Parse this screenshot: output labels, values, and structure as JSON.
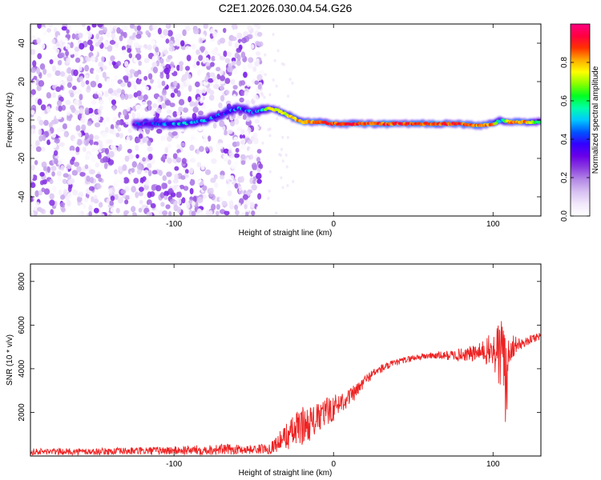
{
  "title": "C2E1.2026.030.04.54.G26",
  "chart_data": [
    {
      "type": "heatmap",
      "xlabel": "Height of straight line (km)",
      "ylabel": "Frequency (Hz)",
      "xlim": [
        -190,
        130
      ],
      "ylim": [
        -50,
        50
      ],
      "xticks": [
        -100,
        0,
        100
      ],
      "yticks": [
        -40,
        -20,
        0,
        20,
        40
      ],
      "noise_region": {
        "x": [
          -190,
          -45
        ],
        "y": [
          -50,
          50
        ]
      },
      "ridge": {
        "x": [
          -125,
          -110,
          -95,
          -80,
          -70,
          -60,
          -50,
          -45,
          -40,
          -35,
          -30,
          -25,
          -20,
          -10,
          0,
          10,
          20,
          40,
          60,
          80,
          90,
          100,
          105,
          110,
          120,
          130
        ],
        "y": [
          -2,
          -2,
          -2,
          0,
          3,
          6,
          4,
          5,
          6,
          5,
          3,
          1,
          -1,
          -1,
          -2,
          -2,
          -2,
          -2,
          -2,
          -2,
          -3,
          -2,
          0,
          -1,
          -1,
          -1
        ],
        "amplitude": [
          0.45,
          0.5,
          0.6,
          0.55,
          0.5,
          0.55,
          0.5,
          0.6,
          0.85,
          0.75,
          0.8,
          0.85,
          0.9,
          0.9,
          0.95,
          0.95,
          0.95,
          0.95,
          0.95,
          0.95,
          0.9,
          0.9,
          0.5,
          0.9,
          0.9,
          0.6
        ]
      },
      "colorbar": {
        "label": "Normalized spectral amplitude",
        "range": [
          0,
          1
        ],
        "ticks": [
          "0.0",
          "0.2",
          "0.4",
          "0.6",
          "0.8"
        ],
        "colors": [
          "#ffffff",
          "#f2e8fb",
          "#d8c2f2",
          "#b58ae6",
          "#8c3fe0",
          "#6a00e8",
          "#3300ff",
          "#0055ff",
          "#00c8ff",
          "#00ffaa",
          "#00ff22",
          "#88ff00",
          "#ffff00",
          "#ffaa00",
          "#ff3300",
          "#ff0040",
          "#ff0080"
        ]
      }
    },
    {
      "type": "line",
      "xlabel": "Height of straight line (km)",
      "ylabel": "SNR (10 * v/v)",
      "xlim": [
        -190,
        130
      ],
      "ylim": [
        0,
        8800
      ],
      "xticks": [
        -100,
        0,
        100
      ],
      "yticks": [
        2000,
        4000,
        6000,
        8000
      ],
      "color": "#ee2222",
      "series": [
        {
          "x": [
            -190,
            -150,
            -100,
            -70,
            -50,
            -40,
            -35,
            -30,
            -25,
            -20,
            -15,
            -10,
            -5,
            0,
            5,
            10,
            15,
            20,
            25,
            30,
            40,
            50,
            60,
            70,
            80,
            90,
            95,
            100,
            103,
            106,
            107,
            108,
            110,
            115,
            120,
            125,
            130
          ],
          "y": [
            200,
            200,
            250,
            300,
            300,
            350,
            600,
            900,
            1100,
            1400,
            1500,
            1700,
            2000,
            2200,
            2500,
            2700,
            3000,
            3500,
            3800,
            4000,
            4300,
            4500,
            4600,
            4600,
            4650,
            4700,
            4800,
            4800,
            4700,
            4400,
            6000,
            2500,
            5000,
            5100,
            5200,
            5400,
            5500
          ],
          "noise": [
            150,
            150,
            200,
            250,
            200,
            250,
            400,
            600,
            800,
            900,
            800,
            700,
            700,
            600,
            500,
            400,
            350,
            250,
            200,
            200,
            150,
            150,
            150,
            200,
            300,
            400,
            600,
            900,
            1500,
            2500,
            2800,
            2500,
            900,
            300,
            200,
            200,
            200
          ]
        }
      ]
    }
  ]
}
